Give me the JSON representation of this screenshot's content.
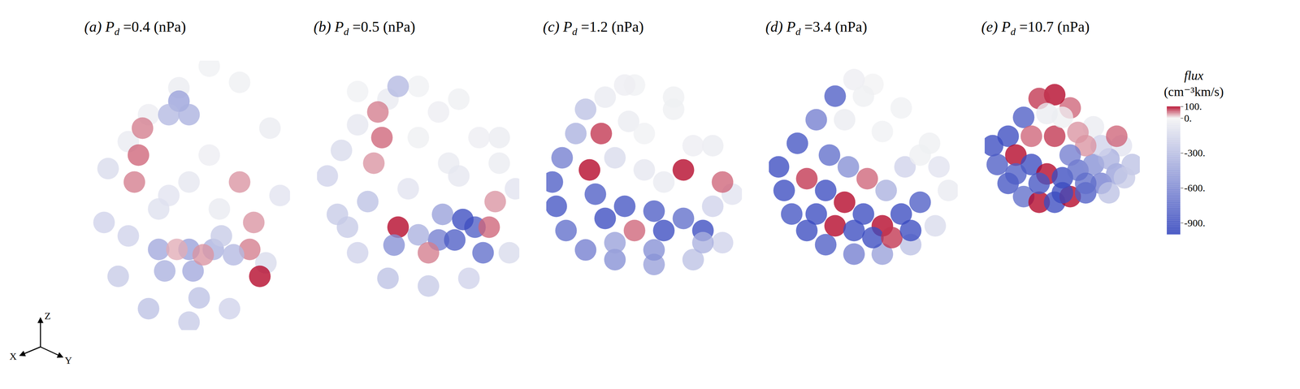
{
  "chart_data": {
    "type": "scatter",
    "pressure_symbol": "P",
    "pressure_subscript": "d",
    "pressure_unit": "(nPa)",
    "tick_labels": false,
    "axes_triad": [
      "X",
      "Y",
      "Z"
    ],
    "colorbar": {
      "label": "flux",
      "unit": "(cm⁻³km/s)",
      "range": [
        -1000,
        100
      ],
      "ticks": [
        {
          "value": 100,
          "label": "100."
        },
        {
          "value": 0,
          "label": "0."
        },
        {
          "value": -300,
          "label": "-300."
        },
        {
          "value": -600,
          "label": "-600."
        },
        {
          "value": -900,
          "label": "-900."
        }
      ],
      "color_stops": [
        -1000,
        0,
        100
      ],
      "colors": [
        "#3b4cc0",
        "#f4f4f4",
        "#b40426"
      ]
    },
    "panels": [
      {
        "letter": "(a)",
        "pressure": 0.4,
        "xlim": [
          0,
          100
        ],
        "ylim": [
          0,
          100
        ],
        "x": [
          10,
          8,
          15,
          30,
          50,
          70,
          88,
          95,
          90,
          75,
          60,
          45,
          30,
          20,
          45,
          50,
          40,
          25,
          23,
          27,
          80,
          82,
          75,
          35,
          38,
          50,
          52,
          62,
          72,
          44,
          57,
          66,
          50,
          60,
          40,
          65,
          35,
          85,
          20,
          55
        ],
        "y": [
          60,
          40,
          20,
          8,
          3,
          8,
          25,
          50,
          75,
          92,
          98,
          90,
          80,
          70,
          85,
          80,
          80,
          65,
          55,
          75,
          30,
          40,
          55,
          30,
          22,
          30,
          22,
          30,
          28,
          30,
          28,
          35,
          55,
          65,
          50,
          45,
          45,
          20,
          35,
          12
        ],
        "values": [
          -150,
          -200,
          -250,
          -300,
          -250,
          -200,
          -150,
          -100,
          -50,
          -30,
          -20,
          -50,
          -40,
          -60,
          -500,
          -400,
          -350,
          60,
          50,
          50,
          50,
          40,
          40,
          -450,
          -400,
          -500,
          -450,
          -400,
          -350,
          30,
          40,
          -250,
          -80,
          -40,
          -100,
          -60,
          -120,
          100,
          -200,
          -300
        ]
      },
      {
        "letter": "(b)",
        "pressure": 0.5,
        "xlim": [
          0,
          100
        ],
        "ylim": [
          0,
          100
        ],
        "x": [
          5,
          10,
          20,
          35,
          55,
          75,
          95,
          98,
          90,
          70,
          50,
          35,
          20,
          12,
          30,
          32,
          28,
          40,
          38,
          78,
          82,
          60,
          62,
          50,
          55,
          68,
          72,
          85,
          88,
          45,
          65,
          80,
          25,
          15,
          50,
          70,
          90,
          40,
          60,
          20
        ],
        "y": [
          55,
          40,
          25,
          15,
          12,
          15,
          25,
          50,
          70,
          85,
          90,
          85,
          75,
          65,
          80,
          70,
          60,
          35,
          28,
          35,
          25,
          30,
          40,
          32,
          25,
          30,
          38,
          35,
          45,
          50,
          60,
          70,
          45,
          35,
          70,
          55,
          60,
          90,
          80,
          88
        ],
        "values": [
          -200,
          -250,
          -200,
          -300,
          -250,
          -200,
          -150,
          -100,
          -50,
          -30,
          -20,
          -60,
          -80,
          -150,
          50,
          60,
          40,
          100,
          -600,
          -900,
          -800,
          -700,
          -500,
          -400,
          50,
          -900,
          -1000,
          60,
          40,
          -100,
          -60,
          -40,
          -300,
          -250,
          -30,
          -80,
          -50,
          -350,
          -40,
          -20
        ]
      },
      {
        "letter": "(c)",
        "pressure": 1.2,
        "xlim": [
          0,
          100
        ],
        "ylim": [
          0,
          100
        ],
        "x": [
          3,
          5,
          10,
          20,
          35,
          55,
          75,
          90,
          95,
          85,
          65,
          45,
          30,
          15,
          8,
          25,
          30,
          40,
          45,
          55,
          60,
          70,
          80,
          85,
          50,
          35,
          22,
          28,
          42,
          65,
          75,
          60,
          40,
          50,
          70,
          90,
          20,
          35,
          55,
          80
        ],
        "y": [
          50,
          40,
          30,
          22,
          18,
          16,
          18,
          25,
          45,
          65,
          80,
          90,
          85,
          70,
          60,
          45,
          35,
          40,
          30,
          38,
          30,
          35,
          30,
          40,
          55,
          60,
          55,
          70,
          75,
          85,
          65,
          50,
          90,
          70,
          55,
          50,
          80,
          25,
          22,
          25
        ],
        "values": [
          -900,
          -950,
          -800,
          -700,
          -600,
          -500,
          -300,
          -200,
          -100,
          -50,
          -30,
          -20,
          -60,
          -400,
          -700,
          -900,
          -1000,
          -950,
          60,
          -900,
          -1000,
          -800,
          -1000,
          -200,
          -80,
          -150,
          100,
          80,
          -50,
          -30,
          -40,
          -60,
          -40,
          -20,
          100,
          60,
          -300,
          -500,
          -600,
          -400
        ]
      },
      {
        "letter": "(d)",
        "pressure": 3.4,
        "xlim": [
          0,
          100
        ],
        "ylim": [
          0,
          100
        ],
        "x": [
          5,
          8,
          12,
          20,
          30,
          45,
          60,
          75,
          88,
          95,
          85,
          70,
          55,
          45,
          35,
          25,
          15,
          20,
          30,
          40,
          50,
          60,
          70,
          80,
          25,
          35,
          45,
          55,
          65,
          75,
          32,
          42,
          52,
          62,
          72,
          40,
          60,
          80,
          90,
          50
        ],
        "y": [
          55,
          45,
          35,
          28,
          22,
          18,
          18,
          22,
          30,
          45,
          65,
          80,
          90,
          92,
          85,
          75,
          65,
          50,
          45,
          40,
          35,
          30,
          35,
          40,
          35,
          30,
          28,
          25,
          25,
          28,
          60,
          55,
          50,
          45,
          55,
          75,
          70,
          60,
          55,
          85
        ],
        "values": [
          -1000,
          -1000,
          -950,
          -1000,
          -900,
          -700,
          -500,
          -300,
          -150,
          -60,
          -30,
          -20,
          -10,
          -40,
          -900,
          -700,
          -950,
          80,
          -1000,
          100,
          -1000,
          100,
          -1000,
          -900,
          -1000,
          100,
          -1000,
          -1000,
          80,
          -1000,
          -800,
          -600,
          60,
          -400,
          -200,
          -50,
          -20,
          -30,
          -100,
          -30
        ]
      },
      {
        "letter": "(e)",
        "pressure": 10.7,
        "xlim": [
          0,
          100
        ],
        "ylim": [
          0,
          100
        ],
        "x": [
          5,
          8,
          15,
          25,
          35,
          45,
          55,
          65,
          75,
          85,
          95,
          88,
          70,
          55,
          45,
          35,
          25,
          15,
          20,
          30,
          40,
          50,
          60,
          70,
          80,
          30,
          45,
          60,
          50,
          40,
          75,
          65,
          55,
          85,
          90,
          20,
          35,
          50,
          65,
          80
        ],
        "y": [
          55,
          45,
          35,
          28,
          25,
          25,
          28,
          30,
          35,
          40,
          45,
          55,
          65,
          75,
          82,
          80,
          70,
          60,
          50,
          45,
          40,
          38,
          42,
          45,
          48,
          60,
          60,
          62,
          70,
          72,
          55,
          55,
          50,
          60,
          38,
          40,
          35,
          30,
          35,
          30
        ],
        "values": [
          -1000,
          -900,
          -950,
          -800,
          100,
          -1000,
          100,
          -900,
          -700,
          -500,
          -300,
          -100,
          -50,
          60,
          100,
          80,
          -900,
          -1000,
          100,
          -1000,
          100,
          -1000,
          -800,
          -600,
          -400,
          60,
          80,
          40,
          -30,
          -50,
          -200,
          40,
          -700,
          60,
          -250,
          -900,
          -950,
          -1000,
          -800,
          -300
        ]
      }
    ]
  }
}
